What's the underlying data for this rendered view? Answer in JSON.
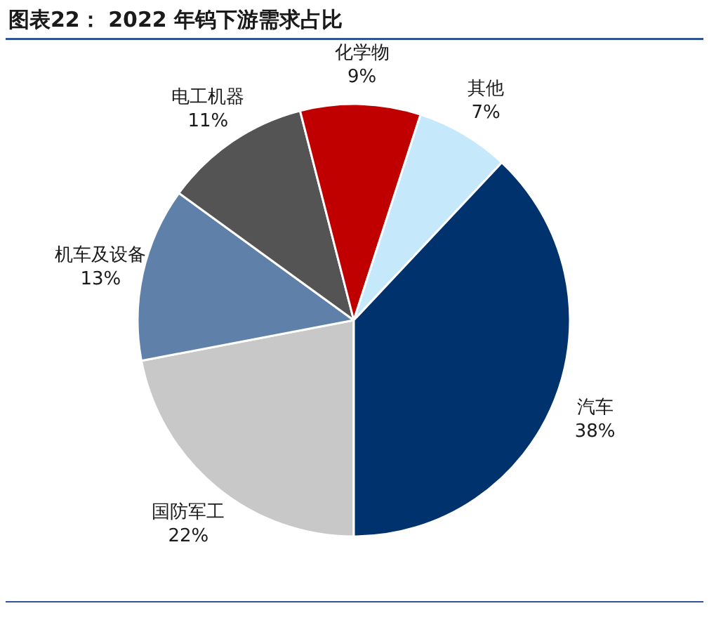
{
  "chart_data": {
    "type": "pie",
    "title": "图表22：  2022 年钨下游需求占比",
    "categories": [
      "国防军工",
      "机车及设备",
      "电工机器",
      "化学物",
      "其他",
      "汽车"
    ],
    "values": [
      22,
      13,
      11,
      9,
      7,
      38
    ],
    "colors": [
      "#c8c8c8",
      "#5f80a8",
      "#545454",
      "#c00000",
      "#c5e8fb",
      "#00336e"
    ],
    "value_labels": [
      "22%",
      "13%",
      "11%",
      "9%",
      "7%",
      "38%"
    ]
  }
}
